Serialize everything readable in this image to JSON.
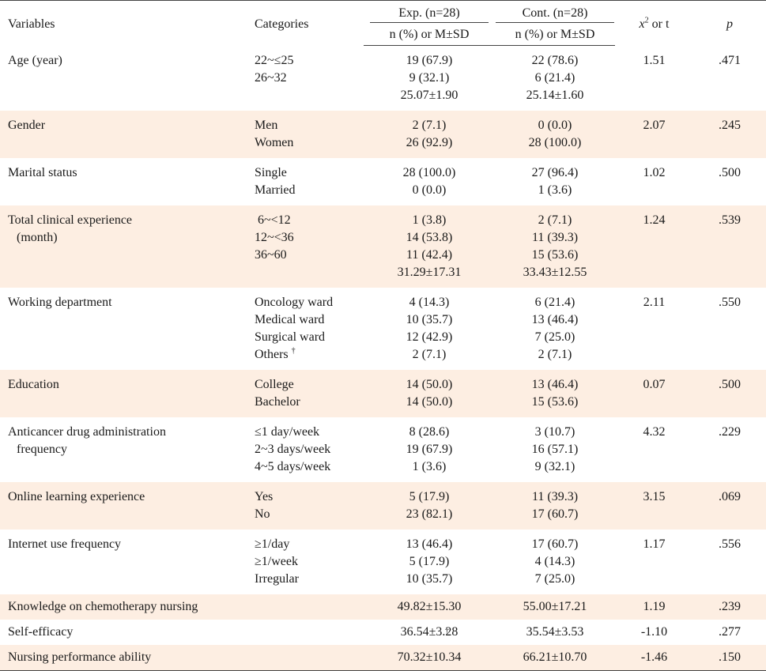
{
  "header": {
    "variables": "Variables",
    "categories": "Categories",
    "exp": "Exp. (n=28)",
    "cont": "Cont. (n=28)",
    "exp_sub": "n (%) or M±SD",
    "cont_sub": "n (%) or M±SD",
    "chi_t": "or t",
    "chi_symbol": "x",
    "chi_sup": "2",
    "p": "p"
  },
  "rows": [
    {
      "variable": [
        "Age (year)"
      ],
      "categories": [
        "22~≤25",
        "26~32",
        ""
      ],
      "exp": [
        "19 (67.9)",
        "9 (32.1)",
        "25.07±1.90"
      ],
      "cont": [
        "22 (78.6)",
        "6 (21.4)",
        "25.14±1.60"
      ],
      "stat": "1.51",
      "p": ".471"
    },
    {
      "variable": [
        "Gender"
      ],
      "categories": [
        "Men",
        "Women"
      ],
      "exp": [
        "2 (7.1)",
        "26 (92.9)"
      ],
      "cont": [
        "0 (0.0)",
        "28 (100.0)"
      ],
      "stat": "2.07",
      "p": ".245"
    },
    {
      "variable": [
        "Marital status"
      ],
      "categories": [
        "Single",
        "Married"
      ],
      "exp": [
        "28 (100.0)",
        "0 (0.0)"
      ],
      "cont": [
        "27 (96.4)",
        "1 (3.6)"
      ],
      "stat": "1.02",
      "p": ".500"
    },
    {
      "variable": [
        "Total clinical experience",
        "(month)"
      ],
      "categories": [
        " 6~<12",
        "12~<36",
        "36~60",
        ""
      ],
      "exp": [
        "1 (3.8)",
        "14 (53.8)",
        "11 (42.4)",
        "31.29±17.31"
      ],
      "cont": [
        "2 (7.1)",
        "11 (39.3)",
        "15 (53.6)",
        "33.43±12.55"
      ],
      "stat": "1.24",
      "p": ".539"
    },
    {
      "variable": [
        "Working department"
      ],
      "categories": [
        "Oncology ward",
        "Medical ward",
        "Surgical ward",
        "Others"
      ],
      "exp": [
        "4 (14.3)",
        "10 (35.7)",
        "12 (42.9)",
        "2 (7.1)"
      ],
      "cont": [
        "6 (21.4)",
        "13 (46.4)",
        "7 (25.0)",
        "2 (7.1)"
      ],
      "stat": "2.11",
      "p": ".550",
      "dagger": "†"
    },
    {
      "variable": [
        "Education"
      ],
      "categories": [
        "College",
        "Bachelor"
      ],
      "exp": [
        "14 (50.0)",
        "14 (50.0)"
      ],
      "cont": [
        "13 (46.4)",
        "15 (53.6)"
      ],
      "stat": "0.07",
      "p": ".500"
    },
    {
      "variable": [
        "Anticancer drug administration",
        "frequency"
      ],
      "categories": [
        "≤1 day/week",
        "2~3 days/week",
        "4~5 days/week"
      ],
      "exp": [
        "8 (28.6)",
        "19 (67.9)",
        "1 (3.6)"
      ],
      "cont": [
        "3 (10.7)",
        "16 (57.1)",
        "9 (32.1)"
      ],
      "stat": "4.32",
      "p": ".229"
    },
    {
      "variable": [
        "Online learning experience"
      ],
      "categories": [
        "Yes",
        "No"
      ],
      "exp": [
        "5 (17.9)",
        "23 (82.1)"
      ],
      "cont": [
        "11 (39.3)",
        "17 (60.7)"
      ],
      "stat": "3.15",
      "p": ".069"
    },
    {
      "variable": [
        "Internet use frequency"
      ],
      "categories": [
        "≥1/day",
        "≥1/week",
        "Irregular"
      ],
      "exp": [
        "13 (46.4)",
        "5 (17.9)",
        "10 (35.7)"
      ],
      "cont": [
        "17 (60.7)",
        "4 (14.3)",
        "7 (25.0)"
      ],
      "stat": "1.17",
      "p": ".556"
    },
    {
      "variable": [
        "Knowledge on chemotherapy nursing"
      ],
      "categories": [
        ""
      ],
      "exp": [
        "49.82±15.30"
      ],
      "cont": [
        "55.00±17.21"
      ],
      "stat": "1.19",
      "p": ".239"
    },
    {
      "variable": [
        "Self-efficacy"
      ],
      "categories": [
        ""
      ],
      "exp": [
        "36.54±3.28"
      ],
      "cont": [
        "35.54±3.53"
      ],
      "stat": "-1.10",
      "p": ".277"
    },
    {
      "variable": [
        "Nursing performance ability"
      ],
      "categories": [
        ""
      ],
      "exp": [
        "70.32±10.34"
      ],
      "cont": [
        "66.21±10.70"
      ],
      "stat": "-1.46",
      "p": ".150"
    }
  ],
  "footer_mark": "†",
  "colors": {
    "shade": "#fdeee2",
    "rule": "#444444"
  }
}
